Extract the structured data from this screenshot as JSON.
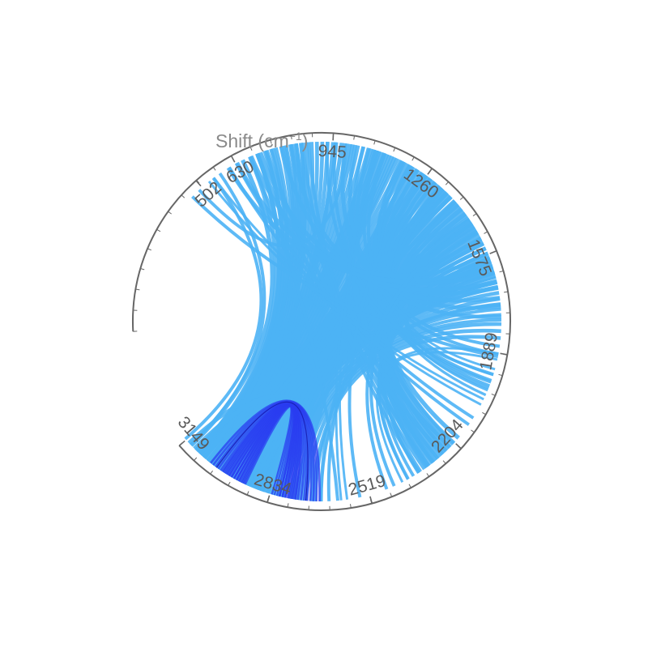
{
  "chart_data": {
    "type": "chord",
    "title": "Shift (cm⁻¹)",
    "title_parts": {
      "main": "Shift (cm",
      "sup": "−1",
      "close": ")"
    },
    "axis_range": [
      0,
      3150
    ],
    "ring_tick_labels": [
      "502",
      "630",
      "945",
      "1260",
      "1575",
      "1889",
      "2204",
      "2519",
      "2834",
      "3149"
    ],
    "ring_tick_values": [
      502,
      630,
      945,
      1260,
      1575,
      1889,
      2204,
      2519,
      2834,
      3149
    ],
    "minor_tick_step": 63,
    "colors": {
      "ribbon": "#4db3f5",
      "ribbon_dark": "#2a3cf0",
      "ribbon_edge": "#1a22b8",
      "ring": "#666666",
      "label": "#5a5a5a",
      "title": "#8a8a8a"
    },
    "links": [
      {
        "from": 2990,
        "to": 1180,
        "w": 180,
        "n": 14
      },
      {
        "from": 3000,
        "to": 1050,
        "w": 150,
        "n": 12
      },
      {
        "from": 3010,
        "to": 870,
        "w": 120,
        "n": 10
      },
      {
        "from": 3030,
        "to": 790,
        "w": 90,
        "n": 8
      },
      {
        "from": 2960,
        "to": 1420,
        "w": 150,
        "n": 12
      },
      {
        "from": 2940,
        "to": 1520,
        "w": 110,
        "n": 9
      },
      {
        "from": 2920,
        "to": 1580,
        "w": 90,
        "n": 8
      },
      {
        "from": 2860,
        "to": 1280,
        "w": 110,
        "n": 9
      },
      {
        "from": 2900,
        "to": 1640,
        "w": 70,
        "n": 6
      },
      {
        "from": 2840,
        "to": 1700,
        "w": 60,
        "n": 5
      },
      {
        "from": 2780,
        "to": 1760,
        "w": 40,
        "n": 4
      },
      {
        "from": 2720,
        "to": 1820,
        "w": 35,
        "n": 3
      },
      {
        "from": 3140,
        "to": 560,
        "w": 20,
        "n": 2
      },
      {
        "from": 3100,
        "to": 680,
        "w": 40,
        "n": 3
      },
      {
        "from": 3070,
        "to": 730,
        "w": 40,
        "n": 3
      },
      {
        "from": 2770,
        "to": 1380,
        "w": 60,
        "n": 5
      },
      {
        "from": 2820,
        "to": 1350,
        "w": 50,
        "n": 4
      },
      {
        "from": 2660,
        "to": 1450,
        "w": 20,
        "n": 2
      },
      {
        "from": 2680,
        "to": 1660,
        "w": 15,
        "n": 2
      },
      {
        "from": 2250,
        "to": 1300,
        "w": 70,
        "n": 6
      },
      {
        "from": 2280,
        "to": 1420,
        "w": 50,
        "n": 4
      },
      {
        "from": 2320,
        "to": 1500,
        "w": 40,
        "n": 3
      },
      {
        "from": 2210,
        "to": 1200,
        "w": 40,
        "n": 3
      },
      {
        "from": 2370,
        "to": 1620,
        "w": 30,
        "n": 3
      },
      {
        "from": 2330,
        "to": 850,
        "w": 30,
        "n": 3
      },
      {
        "from": 2300,
        "to": 1060,
        "w": 30,
        "n": 3
      },
      {
        "from": 2240,
        "to": 720,
        "w": 25,
        "n": 2
      },
      {
        "from": 2010,
        "to": 1180,
        "w": 25,
        "n": 3
      },
      {
        "from": 1990,
        "to": 940,
        "w": 20,
        "n": 2
      },
      {
        "from": 1970,
        "to": 1600,
        "w": 20,
        "n": 2
      },
      {
        "from": 1950,
        "to": 1300,
        "w": 15,
        "n": 2
      },
      {
        "from": 1880,
        "to": 1100,
        "w": 20,
        "n": 2
      },
      {
        "from": 1900,
        "to": 2400,
        "w": 15,
        "n": 2
      },
      {
        "from": 1760,
        "to": 1000,
        "w": 25,
        "n": 2
      },
      {
        "from": 1700,
        "to": 800,
        "w": 25,
        "n": 2
      },
      {
        "from": 1650,
        "to": 700,
        "w": 25,
        "n": 2
      },
      {
        "from": 1600,
        "to": 620,
        "w": 25,
        "n": 2
      },
      {
        "from": 2120,
        "to": 620,
        "w": 20,
        "n": 2
      },
      {
        "from": 2050,
        "to": 540,
        "w": 15,
        "n": 2
      },
      {
        "from": 2620,
        "to": 680,
        "w": 10,
        "n": 1
      },
      {
        "from": 2450,
        "to": 1480,
        "w": 20,
        "n": 2
      },
      {
        "from": 2600,
        "to": 1100,
        "w": 15,
        "n": 2
      },
      {
        "from": 2550,
        "to": 1250,
        "w": 10,
        "n": 1
      },
      {
        "from": 460,
        "to": 1900,
        "w": 10,
        "n": 1
      },
      {
        "from": 490,
        "to": 1000,
        "w": 10,
        "n": 1
      },
      {
        "from": 3120,
        "to": 2780,
        "w": 25,
        "n": 2
      },
      {
        "from": 3110,
        "to": 2700,
        "w": 15,
        "n": 1
      },
      {
        "from": 3040,
        "to": 2870,
        "w": 8,
        "n": 1
      },
      {
        "from": 2980,
        "to": 2740,
        "w": 100,
        "n": 14,
        "dark": true
      },
      {
        "from": 2960,
        "to": 2790,
        "w": 60,
        "n": 10,
        "dark": true
      },
      {
        "from": 3020,
        "to": 2720,
        "w": 8,
        "n": 1,
        "edge": true
      }
    ]
  }
}
